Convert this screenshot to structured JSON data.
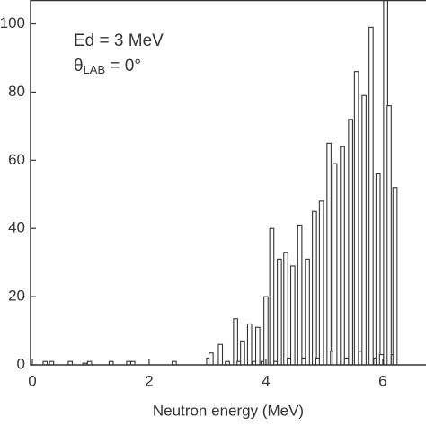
{
  "chart_data": {
    "type": "spike",
    "annotations": [
      "Ed = 3 MeV",
      "θ",
      "LAB",
      " = 0°"
    ],
    "xlabel": "Neutron energy (MeV)",
    "x": [
      0.22,
      0.33,
      0.65,
      0.9,
      0.98,
      1.35,
      1.65,
      1.72,
      2.43,
      3.02,
      3.06,
      3.22,
      3.34,
      3.48,
      3.54,
      3.6,
      3.72,
      3.8,
      3.86,
      3.95,
      4.0,
      4.1,
      4.17,
      4.23,
      4.34,
      4.4,
      4.46,
      4.58,
      4.65,
      4.71,
      4.83,
      4.89,
      4.95,
      5.08,
      5.14,
      5.18,
      5.31,
      5.38,
      5.45,
      5.55,
      5.62,
      5.68,
      5.8,
      5.88,
      5.92,
      5.98,
      6.05,
      6.11,
      6.18,
      6.21
    ],
    "values": [
      1,
      1,
      1,
      0.5,
      1,
      1,
      1,
      1,
      1,
      2,
      3.5,
      6,
      1,
      13.5,
      1,
      7,
      12,
      1,
      11,
      1,
      20,
      40,
      1,
      31,
      33,
      2,
      29,
      41,
      2,
      31,
      45,
      2,
      48,
      65,
      4,
      59,
      64,
      2,
      72,
      86,
      4,
      79,
      99,
      2,
      56,
      3,
      110,
      76,
      3,
      52
    ],
    "bar_width": 0.07,
    "color": "#333333",
    "xlim": [
      -0.03,
      6.74
    ],
    "xticks": [
      0,
      2,
      4,
      6
    ],
    "ylim": [
      0,
      107
    ],
    "yticks": [
      0,
      20,
      40,
      60,
      80,
      100
    ]
  }
}
